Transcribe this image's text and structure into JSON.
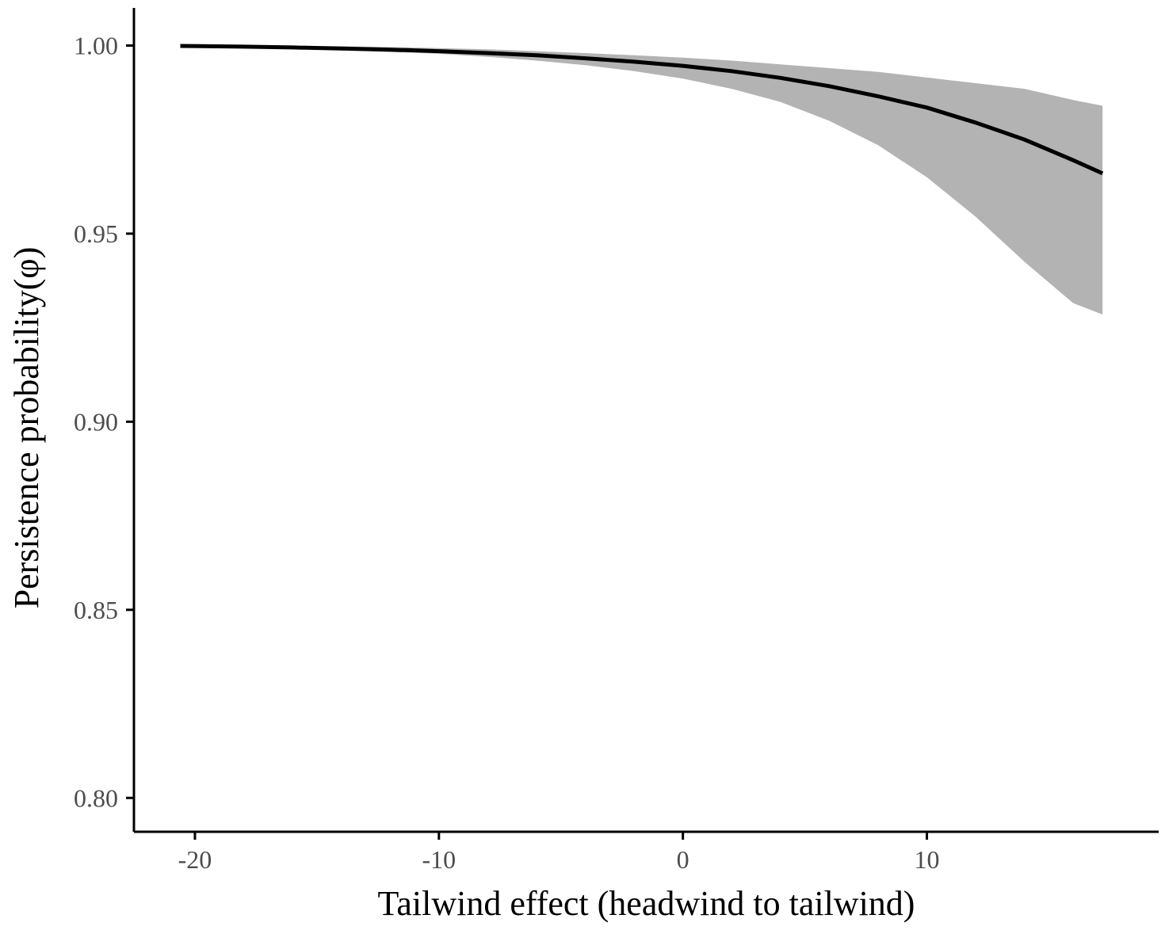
{
  "chart_data": {
    "type": "line",
    "title": "",
    "xlabel": "Tailwind effect (headwind to tailwind)",
    "ylabel": "Persistence probability(φ)",
    "xlim": [
      -22.5,
      19.5
    ],
    "ylim": [
      0.791,
      1.01
    ],
    "x_ticks": [
      -20,
      -10,
      0,
      10
    ],
    "x_tick_labels": [
      "-20",
      "-10",
      "0",
      "10"
    ],
    "y_ticks": [
      0.8,
      0.85,
      0.9,
      0.95,
      1.0
    ],
    "y_tick_labels": [
      "0.80",
      "0.85",
      "0.90",
      "0.95",
      "1.00"
    ],
    "grid": false,
    "legend": "none",
    "series": [
      {
        "x": [
          -20.6,
          -18,
          -16,
          -14,
          -12,
          -10,
          -8,
          -6,
          -4,
          -2,
          0,
          2,
          4,
          6,
          8,
          10,
          12,
          14,
          16,
          17.2
        ],
        "y": [
          0.9999,
          0.9997,
          0.9995,
          0.9992,
          0.9989,
          0.9985,
          0.998,
          0.9974,
          0.9966,
          0.9957,
          0.9946,
          0.9932,
          0.9914,
          0.9892,
          0.9865,
          0.9835,
          0.9795,
          0.975,
          0.9695,
          0.966
        ],
        "ci_lower": [
          0.9998,
          0.9995,
          0.9992,
          0.9988,
          0.9983,
          0.9978,
          0.997,
          0.996,
          0.9948,
          0.9932,
          0.9912,
          0.9885,
          0.985,
          0.98,
          0.9735,
          0.965,
          0.9545,
          0.9425,
          0.9315,
          0.9285
        ],
        "ci_upper": [
          1.0,
          0.9999,
          0.9999,
          0.9998,
          0.9996,
          0.9993,
          0.999,
          0.9985,
          0.998,
          0.9974,
          0.9968,
          0.996,
          0.995,
          0.994,
          0.993,
          0.9915,
          0.99,
          0.9885,
          0.9855,
          0.984
        ]
      }
    ],
    "colors": {
      "line": "#000000",
      "ribbon": "#b3b3b3",
      "axis": "#000000",
      "tick_text": "#4d4d4d"
    }
  }
}
